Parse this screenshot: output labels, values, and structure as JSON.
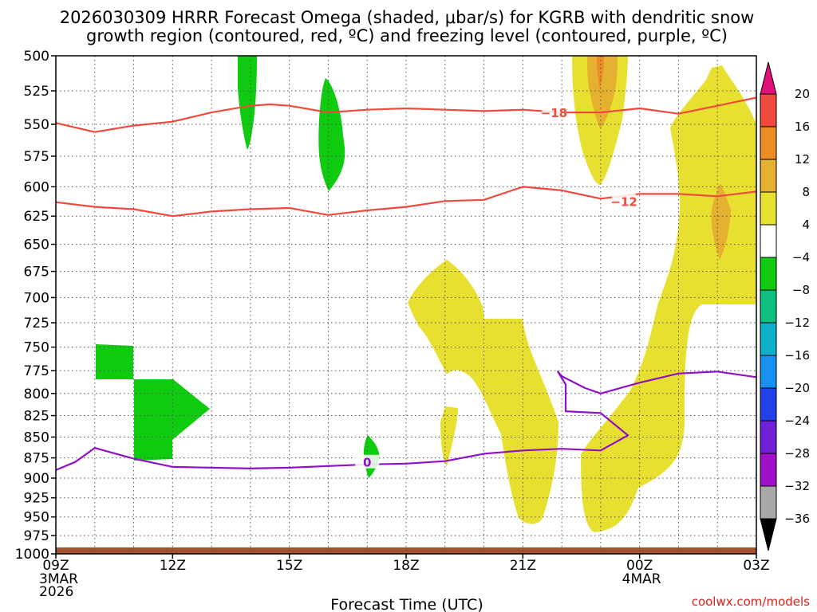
{
  "chart_data": {
    "type": "time-height-cross-section",
    "title_line1": "2026030309 HRRR Forecast Omega (shaded, μbar/s) for KGRB with dendritic snow",
    "title_line2": "growth region (contoured, red, ºC) and freezing level (contoured, purple, ºC)",
    "xlabel": "Forecast Time (UTC)",
    "credit": "coolwx.com/models",
    "x_ticks": [
      {
        "hour": 0,
        "label": "09Z",
        "sub": [
          "3MAR",
          "2026"
        ]
      },
      {
        "hour": 3,
        "label": "12Z",
        "sub": []
      },
      {
        "hour": 6,
        "label": "15Z",
        "sub": []
      },
      {
        "hour": 9,
        "label": "18Z",
        "sub": []
      },
      {
        "hour": 12,
        "label": "21Z",
        "sub": []
      },
      {
        "hour": 15,
        "label": "00Z",
        "sub": [
          "4MAR"
        ]
      },
      {
        "hour": 18,
        "label": "03Z",
        "sub": []
      }
    ],
    "xlim_hours": [
      0,
      18
    ],
    "y_levels": [
      500,
      525,
      550,
      575,
      600,
      625,
      650,
      675,
      700,
      725,
      750,
      775,
      800,
      825,
      850,
      875,
      900,
      925,
      950,
      975,
      1000
    ],
    "ylim_hPa": [
      500,
      1000
    ],
    "y_scale": "log-pressure",
    "grid": "dotted",
    "colorbar": {
      "labels": [
        "20",
        "16",
        "12",
        "8",
        "4",
        "−4",
        "−8",
        "−12",
        "−16",
        "−20",
        "−24",
        "−28",
        "−32",
        "−36"
      ],
      "bins": [
        {
          "color": "#e8e030",
          "range": [
            4,
            8
          ]
        },
        {
          "color": "#e6b030",
          "range": [
            8,
            12
          ]
        },
        {
          "color": "#ec8c24",
          "range": [
            12,
            16
          ]
        },
        {
          "color": "#f04a3c",
          "range": [
            16,
            20
          ]
        },
        {
          "color": "#ffffff",
          "range": [
            -4,
            4
          ]
        },
        {
          "color": "#10cc10",
          "range": [
            -8,
            -4
          ]
        },
        {
          "color": "#10c080",
          "range": [
            -12,
            -8
          ]
        },
        {
          "color": "#10b0c8",
          "range": [
            -16,
            -12
          ]
        },
        {
          "color": "#1890f0",
          "range": [
            -20,
            -16
          ]
        },
        {
          "color": "#2040e8",
          "range": [
            -24,
            -20
          ]
        },
        {
          "color": "#7020d8",
          "range": [
            -28,
            -24
          ]
        },
        {
          "color": "#a010c8",
          "range": [
            -32,
            -28
          ]
        },
        {
          "color": "#a8a8a8",
          "range": [
            -36,
            -32
          ]
        }
      ],
      "top_arrow_color": "#e0107a",
      "bottom_arrow_color": "#000000"
    },
    "contours": [
      {
        "name": "-18",
        "color": "#f04a3c",
        "label_at": [
          12.8,
          541
        ],
        "points": [
          [
            0,
            549
          ],
          [
            1,
            556
          ],
          [
            2,
            551
          ],
          [
            3,
            548
          ],
          [
            4,
            541
          ],
          [
            5,
            536
          ],
          [
            5.5,
            535
          ],
          [
            6,
            536
          ],
          [
            7,
            541
          ],
          [
            8,
            539
          ],
          [
            9,
            538
          ],
          [
            10,
            539
          ],
          [
            11,
            540
          ],
          [
            12,
            539
          ],
          [
            13,
            541
          ],
          [
            14,
            541
          ],
          [
            15,
            538
          ],
          [
            16,
            542
          ],
          [
            17,
            536
          ],
          [
            18,
            530
          ]
        ]
      },
      {
        "name": "-12",
        "color": "#f04a3c",
        "label_at": [
          14.6,
          612
        ],
        "points": [
          [
            0,
            613
          ],
          [
            1,
            617
          ],
          [
            2,
            619
          ],
          [
            3,
            625
          ],
          [
            4,
            621
          ],
          [
            5,
            619
          ],
          [
            6,
            618
          ],
          [
            7,
            624
          ],
          [
            8,
            620
          ],
          [
            9,
            617
          ],
          [
            10,
            612
          ],
          [
            11,
            611
          ],
          [
            12,
            600
          ],
          [
            13,
            603
          ],
          [
            14,
            610
          ],
          [
            15,
            606
          ],
          [
            16,
            606
          ],
          [
            17,
            608
          ],
          [
            18,
            604
          ]
        ]
      },
      {
        "name": "0",
        "color": "#9010c8",
        "label_at": [
          8,
          880
        ],
        "points": [
          [
            0,
            890
          ],
          [
            0.5,
            880
          ],
          [
            1,
            863
          ],
          [
            2,
            876
          ],
          [
            3,
            886
          ],
          [
            4,
            887
          ],
          [
            5,
            888
          ],
          [
            6,
            887
          ],
          [
            7,
            885
          ],
          [
            8,
            883
          ],
          [
            9,
            882
          ],
          [
            10,
            879
          ],
          [
            11,
            870
          ],
          [
            12,
            866
          ],
          [
            13,
            864
          ],
          [
            14,
            866
          ],
          [
            14.7,
            848
          ],
          [
            14,
            822
          ],
          [
            13.1,
            820
          ],
          [
            13.1,
            790
          ],
          [
            12.9,
            776
          ],
          [
            13,
            781
          ],
          [
            13.6,
            794
          ],
          [
            14,
            800
          ],
          [
            15,
            788
          ],
          [
            16,
            778
          ],
          [
            17,
            776
          ],
          [
            18,
            782
          ]
        ]
      }
    ]
  }
}
